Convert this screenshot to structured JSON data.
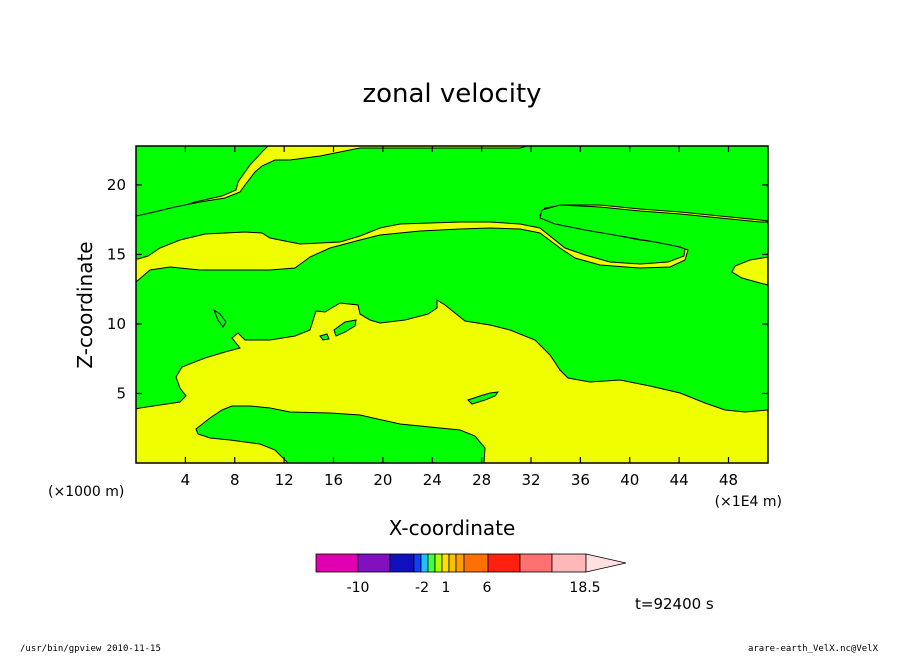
{
  "chart_data": {
    "type": "heatmap",
    "title": "zonal velocity",
    "xlabel": "X-coordinate",
    "ylabel": "Z-coordinate",
    "x_unit_left": "(×1000 m)",
    "x_unit_right": "(×1E4 m)",
    "xlim": [
      0,
      51.2
    ],
    "ylim": [
      0,
      22.8
    ],
    "xticks": [
      4,
      8,
      12,
      16,
      20,
      24,
      28,
      32,
      36,
      40,
      44,
      48
    ],
    "yticks": [
      5,
      10,
      15,
      20
    ],
    "colors": {
      "positive_region": "#f0ff00",
      "negative_region": "#00ff00"
    },
    "colorbar": {
      "colors": [
        "#e000b0",
        "#8010c0",
        "#1010c0",
        "#1040ff",
        "#20c0ff",
        "#40ff40",
        "#b0ff00",
        "#ffe000",
        "#ffc000",
        "#ffa000",
        "#ff7000",
        "#ff2010",
        "#ff7070",
        "#ffb8b8",
        "#ffe0e0"
      ],
      "tick_labels": [
        "-10",
        "-2",
        "1",
        "6",
        "18.5"
      ]
    },
    "time_label": "t=92400 s"
  },
  "footer": {
    "left": "/usr/bin/gpview   2010-11-15",
    "right": "arare-earth_VelX.nc@VelX"
  }
}
